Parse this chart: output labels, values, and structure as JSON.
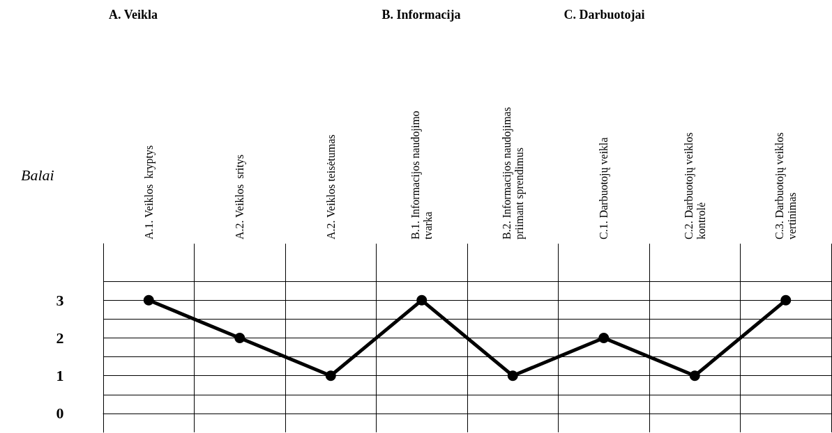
{
  "chart_data": {
    "type": "line",
    "ylabel": "Balai",
    "categories": [
      "A.1. Veiklos  kryptys",
      "A.2. Veiklos  sritys",
      "A.2. Veiklos teisėtumas",
      "B.1. Informacijos naudojimo tvarka",
      "B.2. Informacijos naudojimas priimant sprendimus",
      "C.1. Darbuotojų veikla",
      "C.2. Darbuotojų veiklos kontrolė",
      "C.3. Darbuotojų veiklos vertinimas"
    ],
    "series": [
      {
        "color": "#000000",
        "values": [
          3,
          2,
          1,
          3,
          1,
          2,
          1,
          3
        ]
      }
    ],
    "ylim": [
      -0.5,
      4.5
    ],
    "yticks": [
      0,
      {
        "value": 0.5,
        "label": null
      },
      1,
      {
        "value": 1.5,
        "label": null
      },
      2,
      {
        "value": 2.5,
        "label": null
      },
      3,
      {
        "value": 3.5,
        "label": null
      }
    ],
    "annotations": [
      "A. Veikla",
      "B. Informacija",
      "C. Darbuotojai"
    ],
    "grid": true,
    "marker": "circle",
    "line_style": "solid"
  }
}
